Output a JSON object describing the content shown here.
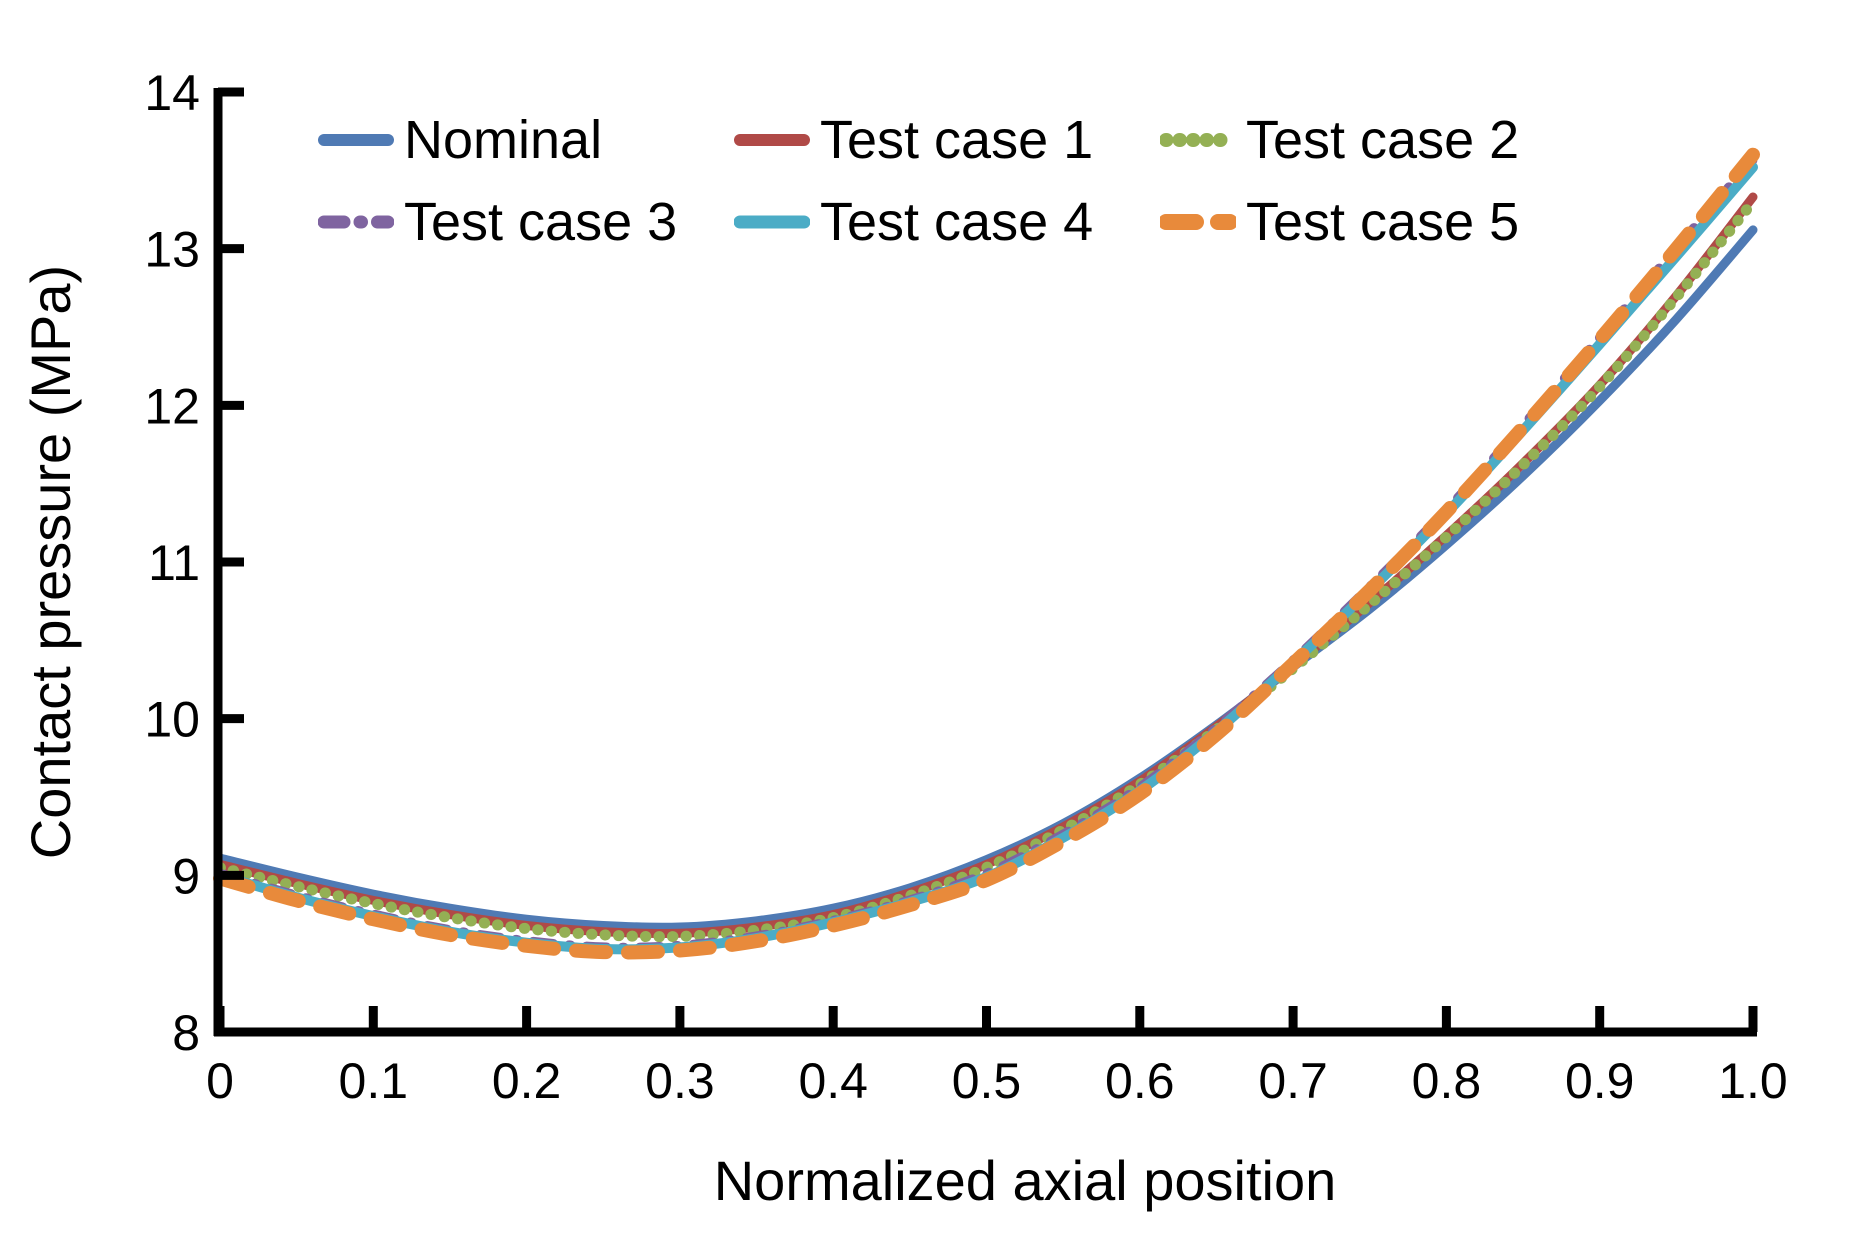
{
  "chart_data": {
    "type": "line",
    "title": "",
    "xlabel": "Normalized axial position",
    "ylabel": "Contact pressure (MPa)",
    "xlim": [
      0,
      1.0
    ],
    "ylim": [
      8,
      14
    ],
    "grid": "off",
    "legend_position": "top-inside-two-rows",
    "axis_color": "#000000",
    "x_tick_labels": [
      "0",
      "0.1",
      "0.2",
      "0.3",
      "0.4",
      "0.5",
      "0.6",
      "0.7",
      "0.8",
      "0.9",
      "1.0"
    ],
    "x_tick_values": [
      0,
      0.1,
      0.2,
      0.3,
      0.4,
      0.5,
      0.6,
      0.7,
      0.8,
      0.9,
      1.0
    ],
    "y_tick_labels": [
      "8",
      "9",
      "10",
      "11",
      "12",
      "13",
      "14"
    ],
    "y_tick_values": [
      8,
      9,
      10,
      11,
      12,
      13,
      14
    ],
    "x": [
      0,
      0.05,
      0.1,
      0.15,
      0.2,
      0.25,
      0.3,
      0.35,
      0.4,
      0.45,
      0.5,
      0.55,
      0.6,
      0.65,
      0.7,
      0.75,
      0.8,
      0.85,
      0.9,
      0.95,
      1.0
    ],
    "series": [
      {
        "name": "Nominal",
        "color": "#4F7AB4",
        "style": "solid",
        "width": 9,
        "values": [
          9.11,
          8.99,
          8.88,
          8.79,
          8.72,
          8.68,
          8.67,
          8.71,
          8.79,
          8.92,
          9.1,
          9.33,
          9.62,
          9.96,
          10.33,
          10.7,
          11.11,
          11.55,
          12.03,
          12.55,
          13.12
        ]
      },
      {
        "name": "Test case 1",
        "color": "#B04A47",
        "style": "solid",
        "width": 9,
        "values": [
          9.07,
          8.95,
          8.84,
          8.75,
          8.68,
          8.64,
          8.63,
          8.67,
          8.75,
          8.89,
          9.07,
          9.31,
          9.6,
          9.95,
          10.34,
          10.74,
          11.17,
          11.63,
          12.13,
          12.7,
          13.33
        ]
      },
      {
        "name": "Test case 2",
        "color": "#94B054",
        "style": "dotted",
        "width": 11,
        "values": [
          9.05,
          8.93,
          8.82,
          8.73,
          8.66,
          8.62,
          8.61,
          8.65,
          8.73,
          8.87,
          9.05,
          9.29,
          9.58,
          9.93,
          10.32,
          10.73,
          11.16,
          11.62,
          12.12,
          12.69,
          13.3
        ]
      },
      {
        "name": "Test case 3",
        "color": "#7F64A0",
        "style": "dash-dot",
        "width": 10,
        "values": [
          9.01,
          8.87,
          8.75,
          8.65,
          8.58,
          8.54,
          8.55,
          8.61,
          8.71,
          8.84,
          9.01,
          9.26,
          9.56,
          9.94,
          10.37,
          10.84,
          11.33,
          11.87,
          12.43,
          13.0,
          13.57
        ]
      },
      {
        "name": "Test case 4",
        "color": "#4BACC6",
        "style": "solid",
        "width": 10,
        "values": [
          9.0,
          8.86,
          8.74,
          8.64,
          8.57,
          8.53,
          8.54,
          8.6,
          8.7,
          8.83,
          8.99,
          9.24,
          9.54,
          9.92,
          10.36,
          10.82,
          11.31,
          11.84,
          12.39,
          12.95,
          13.52
        ]
      },
      {
        "name": "Test case 5",
        "color": "#E88A3B",
        "style": "dashed",
        "width": 14,
        "values": [
          8.98,
          8.84,
          8.72,
          8.62,
          8.55,
          8.51,
          8.52,
          8.58,
          8.68,
          8.81,
          8.97,
          9.22,
          9.52,
          9.9,
          10.35,
          10.82,
          11.32,
          11.86,
          12.42,
          13.0,
          13.6
        ]
      }
    ]
  }
}
